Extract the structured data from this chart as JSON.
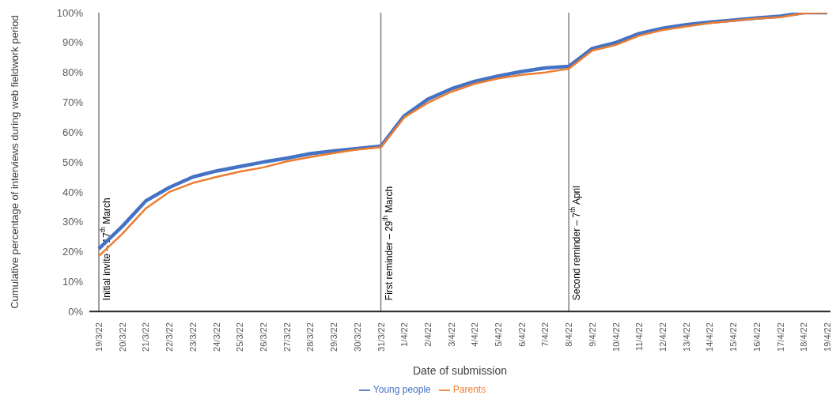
{
  "chart_data": {
    "type": "line",
    "xlabel": "Date of submission",
    "ylabel": "Cumulative percentage of interviews during web fieldwork period",
    "categories": [
      "19/3/22",
      "20/3/22",
      "21/3/22",
      "22/3/22",
      "23/3/22",
      "24/3/22",
      "25/3/22",
      "26/3/22",
      "27/3/22",
      "28/3/22",
      "29/3/22",
      "30/3/22",
      "31/3/22",
      "1/4/22",
      "2/4/22",
      "3/4/22",
      "4/4/22",
      "5/4/22",
      "6/4/22",
      "7/4/22",
      "8/4/22",
      "9/4/22",
      "10/4/22",
      "11/4/22",
      "12/4/22",
      "13/4/22",
      "14/4/22",
      "15/4/22",
      "16/4/22",
      "17/4/22",
      "18/4/22",
      "19/4/22"
    ],
    "series": [
      {
        "name": "Young people",
        "color": "#4472c4",
        "values": [
          21,
          28.5,
          37,
          41.5,
          45,
          47,
          48.5,
          50,
          51.3,
          52.8,
          53.7,
          54.5,
          55.3,
          65.5,
          71,
          74.5,
          77,
          78.8,
          80.3,
          81.5,
          82,
          88,
          90,
          93,
          94.8,
          96,
          96.8,
          97.5,
          98.2,
          98.8,
          100,
          100
        ]
      },
      {
        "name": "Parents",
        "color": "#ed7d31",
        "values": [
          18.5,
          26,
          34.5,
          40,
          43,
          45,
          46.8,
          48.2,
          50.2,
          51.7,
          53,
          54.2,
          55,
          65,
          69.8,
          73.5,
          76.2,
          78,
          79.2,
          80,
          81.2,
          87.3,
          89.2,
          92.3,
          94.2,
          95.4,
          96.5,
          97.3,
          98,
          98.5,
          99.8,
          100
        ]
      }
    ],
    "ylim": [
      0,
      100
    ],
    "yticks": [
      {
        "value": 0,
        "label": "0%"
      },
      {
        "value": 10,
        "label": "10%"
      },
      {
        "value": 20,
        "label": "20%"
      },
      {
        "value": 30,
        "label": "30%"
      },
      {
        "value": 40,
        "label": "40%"
      },
      {
        "value": 50,
        "label": "50%"
      },
      {
        "value": 60,
        "label": "60%"
      },
      {
        "value": 70,
        "label": "70%"
      },
      {
        "value": 80,
        "label": "80%"
      },
      {
        "value": 90,
        "label": "90%"
      },
      {
        "value": 100,
        "label": "100%"
      }
    ],
    "ref_lines": [
      {
        "axis": "x",
        "value": "19/3/22",
        "label": "Initial invite – 17$^{th}$ March",
        "color": "#7f7f7f"
      },
      {
        "axis": "x",
        "value": "31/3/22",
        "label": "First reminder – 29$^{th}$ March",
        "color": "#7f7f7f"
      },
      {
        "axis": "x",
        "value": "8/4/22",
        "label": "Second reminder – 7$^{th}$ April",
        "color": "#7f7f7f"
      }
    ],
    "grid": false,
    "legend": "bottom",
    "marker": "none",
    "line_style": "solid"
  }
}
